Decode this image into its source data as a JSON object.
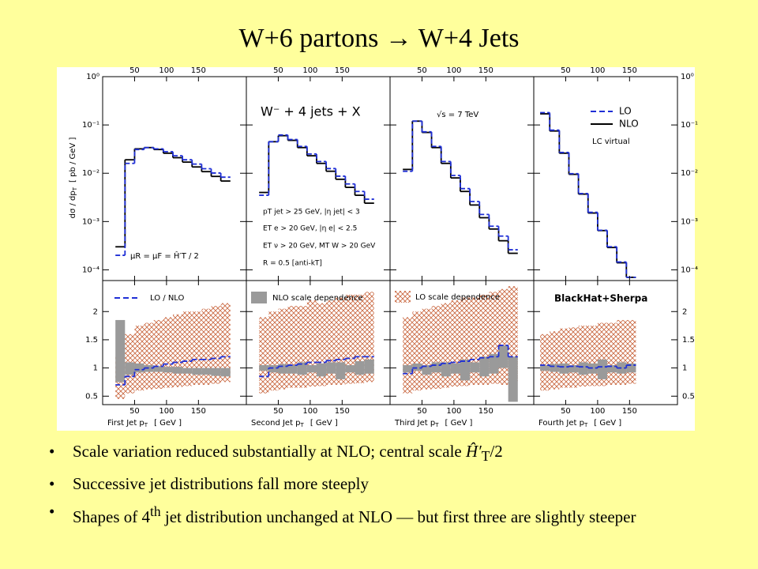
{
  "title": "W+6 partons → W+4 Jets",
  "figure": {
    "type": "step",
    "y_label": [
      "dσ / dp",
      "T",
      "[ pb / GeV ]"
    ],
    "log_y": true,
    "ylim": [
      6e-05,
      1
    ],
    "yticks": [
      {
        "value": 1,
        "label": "10⁰"
      },
      {
        "value": 0.1,
        "label": "10⁻¹"
      },
      {
        "value": 0.01,
        "label": "10⁻²"
      },
      {
        "value": 0.001,
        "label": "10⁻³"
      },
      {
        "value": 0.0001,
        "label": "10⁻⁴"
      }
    ],
    "ratio_ylim": [
      0.35,
      2.55
    ],
    "ratio_yticks": [
      0.5,
      1,
      1.5,
      2
    ],
    "xlim": [
      0,
      225
    ],
    "xticks": [
      50,
      100,
      150
    ],
    "lo_color": "#1f2fd6",
    "nlo_color": "#000000",
    "lo_band_color": "#c8643c",
    "nlo_band_color": "#9a9a9a",
    "legend": {
      "lo": "LO",
      "nlo": "NLO",
      "ratio": "LO / NLO",
      "nlo_band": "NLO scale dependence",
      "lo_band": "LO scale dependence"
    },
    "annotations": {
      "process": "W⁻ + 4 jets + X",
      "energy": "√s = 7 TeV",
      "scale": "μR = μF = Ĥ′T / 2",
      "virtual": "LC virtual",
      "generator": "BlackHat+Sherpa",
      "cuts": [
        "pT jet > 25 GeV,  |η jet| < 3",
        "ET e > 20 GeV,  |η e| < 2.5",
        "ET ν > 20 GeV,  MT W > 20 GeV",
        "R = 0.5  [anti-kT]"
      ]
    },
    "panels": [
      {
        "x_label": [
          "First Jet p",
          "T",
          "[ GeV ]"
        ],
        "bins": [
          20,
          35,
          50,
          65,
          80,
          95,
          110,
          125,
          140,
          155,
          170,
          185,
          200
        ],
        "nlo": [
          0.0003,
          0.019,
          0.032,
          0.034,
          0.031,
          0.026,
          0.021,
          0.017,
          0.0135,
          0.0108,
          0.0086,
          0.0069
        ],
        "lo": [
          0.0002,
          0.016,
          0.031,
          0.034,
          0.032,
          0.028,
          0.023,
          0.019,
          0.0155,
          0.0124,
          0.0101,
          0.0083
        ],
        "ratio": [
          0.7,
          0.85,
          0.97,
          1.0,
          1.03,
          1.07,
          1.1,
          1.12,
          1.15,
          1.15,
          1.17,
          1.2
        ],
        "lo_band_low": [
          0.45,
          0.55,
          0.6,
          0.62,
          0.63,
          0.65,
          0.66,
          0.68,
          0.7,
          0.7,
          0.72,
          0.75
        ],
        "lo_band_high": [
          1.2,
          1.6,
          1.75,
          1.8,
          1.85,
          1.9,
          1.95,
          2.0,
          2.0,
          2.05,
          2.1,
          2.15
        ],
        "nlo_band_low": [
          0.75,
          0.88,
          0.92,
          0.93,
          0.93,
          0.92,
          0.9,
          0.9,
          0.88,
          0.88,
          0.86,
          0.85
        ],
        "nlo_band_high": [
          1.85,
          1.1,
          1.08,
          1.05,
          1.03,
          1.02,
          1.02,
          1.0,
          1.0,
          1.0,
          1.0,
          1.0
        ]
      },
      {
        "x_label": [
          "Second Jet p",
          "T",
          "[ GeV ]"
        ],
        "bins": [
          20,
          35,
          50,
          65,
          80,
          95,
          110,
          125,
          140,
          155,
          170,
          185,
          200
        ],
        "nlo": [
          0.004,
          0.045,
          0.06,
          0.048,
          0.034,
          0.023,
          0.016,
          0.011,
          0.0075,
          0.0051,
          0.0035,
          0.0024
        ],
        "lo": [
          0.0035,
          0.045,
          0.062,
          0.05,
          0.036,
          0.025,
          0.0175,
          0.0125,
          0.0087,
          0.006,
          0.0042,
          0.0029
        ],
        "ratio": [
          0.85,
          1.0,
          1.03,
          1.05,
          1.07,
          1.1,
          1.1,
          1.13,
          1.15,
          1.17,
          1.2,
          1.2
        ],
        "lo_band_low": [
          0.55,
          0.6,
          0.62,
          0.65,
          0.65,
          0.67,
          0.68,
          0.7,
          0.7,
          0.72,
          0.73,
          0.75
        ],
        "lo_band_high": [
          1.9,
          2.0,
          2.05,
          2.1,
          2.1,
          2.2,
          2.15,
          2.2,
          2.25,
          2.3,
          2.3,
          2.35
        ],
        "nlo_band_low": [
          0.95,
          0.92,
          0.9,
          0.9,
          0.88,
          0.92,
          0.85,
          0.9,
          0.8,
          0.92,
          0.88,
          0.9
        ],
        "nlo_band_high": [
          1.05,
          1.05,
          1.07,
          1.05,
          1.1,
          1.05,
          1.08,
          1.1,
          1.1,
          1.05,
          1.12,
          1.15
        ]
      },
      {
        "x_label": [
          "Third Jet p",
          "T",
          "[ GeV ]"
        ],
        "bins": [
          20,
          35,
          50,
          65,
          80,
          95,
          110,
          125,
          140,
          155,
          170,
          185,
          200
        ],
        "nlo": [
          0.012,
          0.12,
          0.07,
          0.034,
          0.016,
          0.008,
          0.0042,
          0.0022,
          0.0012,
          0.0007,
          0.0004,
          0.00022
        ],
        "lo": [
          0.011,
          0.12,
          0.072,
          0.036,
          0.0175,
          0.009,
          0.0048,
          0.0026,
          0.0014,
          0.0008,
          0.0005,
          0.00026
        ],
        "ratio": [
          0.9,
          1.0,
          1.03,
          1.05,
          1.08,
          1.1,
          1.12,
          1.15,
          1.18,
          1.2,
          1.4,
          1.2
        ],
        "lo_band_low": [
          0.55,
          0.6,
          0.62,
          0.63,
          0.65,
          0.67,
          0.68,
          0.7,
          0.7,
          0.72,
          0.7,
          0.75
        ],
        "lo_band_high": [
          1.9,
          2.0,
          2.05,
          2.1,
          2.15,
          2.2,
          2.25,
          2.25,
          2.3,
          2.35,
          2.4,
          2.45
        ],
        "nlo_band_low": [
          0.92,
          0.95,
          0.88,
          0.92,
          0.85,
          0.9,
          0.78,
          0.92,
          0.85,
          0.9,
          1.0,
          0.4
        ],
        "nlo_band_high": [
          1.05,
          1.08,
          1.05,
          1.1,
          1.1,
          1.08,
          1.15,
          1.1,
          1.2,
          1.25,
          1.4,
          1.2
        ]
      },
      {
        "x_label": [
          "Fourth Jet p",
          "T",
          "[ GeV ]"
        ],
        "bins": [
          10,
          25,
          40,
          55,
          70,
          85,
          100,
          115,
          130,
          145,
          160
        ],
        "nlo": [
          0.17,
          0.075,
          0.026,
          0.0095,
          0.0037,
          0.0015,
          0.00065,
          0.00029,
          0.00014,
          7e-05
        ],
        "lo": [
          0.18,
          0.078,
          0.027,
          0.0098,
          0.0038,
          0.00155,
          0.00066,
          0.0003,
          0.000145,
          7e-05
        ],
        "ratio": [
          1.05,
          1.03,
          1.02,
          1.03,
          1.02,
          1.0,
          1.02,
          1.03,
          1.0,
          1.05
        ],
        "lo_band_low": [
          0.6,
          0.62,
          0.65,
          0.65,
          0.67,
          0.68,
          0.68,
          0.7,
          0.7,
          0.72
        ],
        "lo_band_high": [
          1.6,
          1.65,
          1.7,
          1.72,
          1.75,
          1.75,
          1.8,
          1.8,
          1.85,
          1.85
        ],
        "nlo_band_low": [
          0.95,
          0.93,
          0.9,
          0.92,
          0.88,
          0.9,
          0.8,
          0.92,
          0.9,
          0.92
        ],
        "nlo_band_high": [
          1.05,
          1.07,
          1.08,
          1.05,
          1.1,
          1.08,
          1.15,
          1.05,
          1.1,
          1.08
        ]
      }
    ]
  },
  "bullets": [
    [
      "Scale variation reduced substantially at NLO; central scale ",
      "Ĥ′",
      "T",
      "/2"
    ],
    [
      "Successive jet distributions fall more steeply"
    ],
    [
      "Shapes of 4",
      "th",
      " jet distribution unchanged at NLO — but first three are slightly steeper"
    ]
  ]
}
